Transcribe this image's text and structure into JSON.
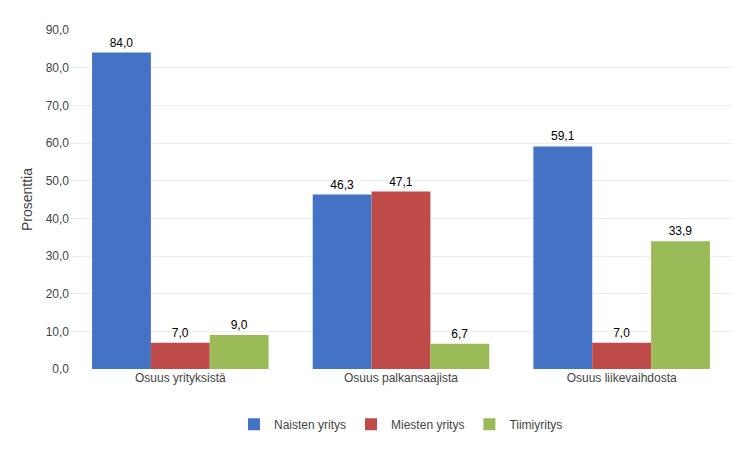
{
  "chart_data": {
    "type": "bar",
    "categories": [
      "Osuus yrityksistä",
      "Osuus palkansaajista",
      "Osuus liikevaihdosta"
    ],
    "series": [
      {
        "name": "Naisten yritys",
        "color": "#4472C4",
        "values": [
          84.0,
          46.3,
          59.1
        ],
        "value_labels": [
          "84,0",
          "46,3",
          "59,1"
        ]
      },
      {
        "name": "Miesten yritys",
        "color": "#BE4B48",
        "values": [
          7.0,
          47.1,
          7.0
        ],
        "value_labels": [
          "7,0",
          "47,1",
          "7,0"
        ]
      },
      {
        "name": "Tiimiyritys",
        "color": "#9BBB59",
        "values": [
          9.0,
          6.7,
          33.9
        ],
        "value_labels": [
          "9,0",
          "6,7",
          "33,9"
        ]
      }
    ],
    "ylabel": "Prosenttia",
    "ylim": [
      0,
      90
    ],
    "yticks": [
      {
        "value": 0,
        "label": "0,0"
      },
      {
        "value": 10,
        "label": "10,0"
      },
      {
        "value": 20,
        "label": "20,0"
      },
      {
        "value": 30,
        "label": "30,0"
      },
      {
        "value": 40,
        "label": "40,0"
      },
      {
        "value": 50,
        "label": "50,0"
      },
      {
        "value": 60,
        "label": "60,0"
      },
      {
        "value": 70,
        "label": "70,0"
      },
      {
        "value": 80,
        "label": "80,0"
      },
      {
        "value": 90,
        "label": "90,0"
      }
    ],
    "grid": true,
    "legend": "bottom",
    "data_labels": true
  }
}
